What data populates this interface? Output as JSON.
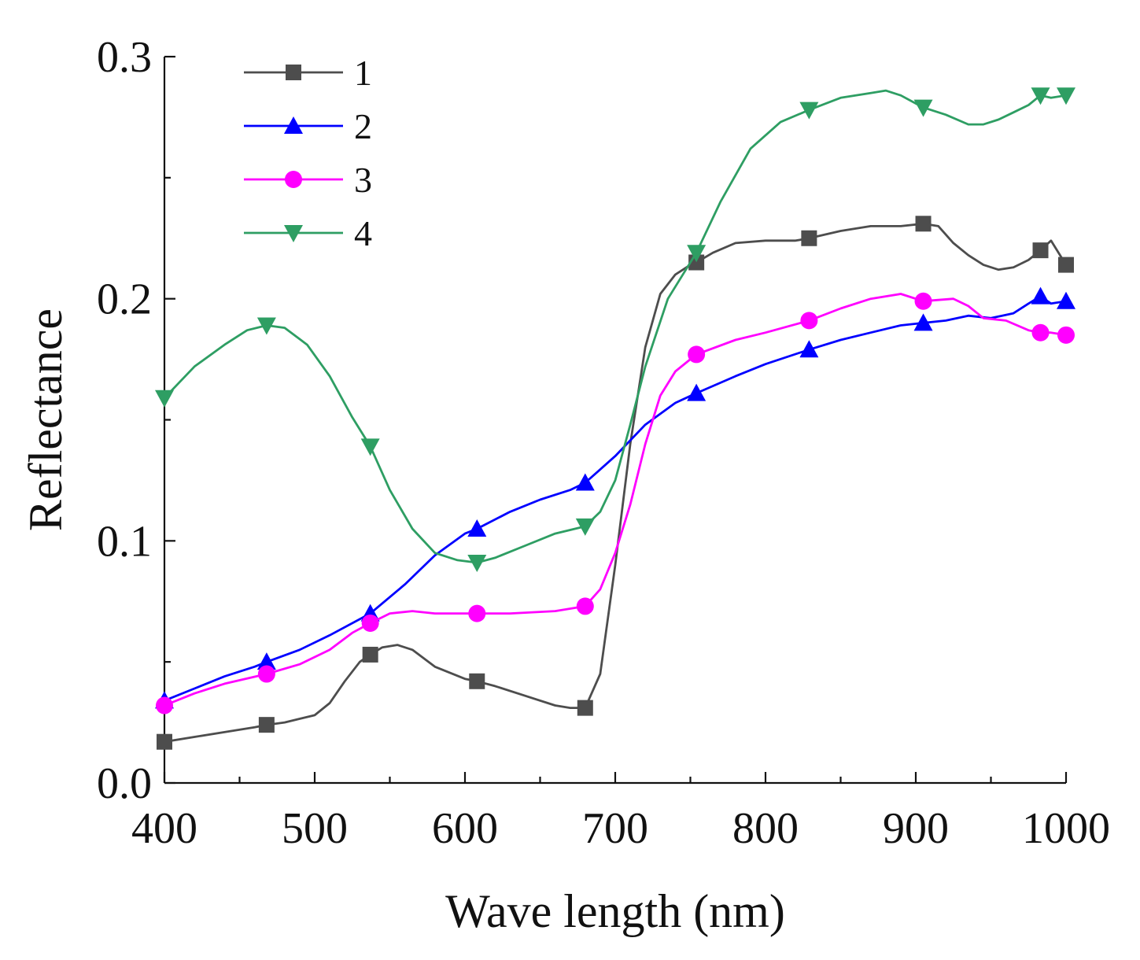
{
  "chart_data": {
    "type": "line",
    "title": "",
    "xlabel": "Wave length (nm)",
    "ylabel": "Reflectance",
    "xlim": [
      400,
      1000
    ],
    "ylim": [
      0.0,
      0.3
    ],
    "xticks": [
      400,
      500,
      600,
      700,
      800,
      900,
      1000
    ],
    "xtick_labels": [
      "400",
      "500",
      "600",
      "700",
      "800",
      "900",
      "1000"
    ],
    "yticks": [
      0.0,
      0.1,
      0.2,
      0.3
    ],
    "ytick_labels": [
      "0.0",
      "0.1",
      "0.2",
      "0.3"
    ],
    "grid": false,
    "legend_position": "top-left",
    "series": [
      {
        "name": "1",
        "color": "#4d4d4d",
        "marker": "square",
        "x": [
          400,
          420,
          440,
          460,
          468,
          480,
          500,
          510,
          520,
          530,
          537,
          545,
          555,
          565,
          580,
          600,
          608,
          620,
          640,
          660,
          670,
          680,
          690,
          700,
          710,
          720,
          730,
          740,
          750,
          754,
          765,
          780,
          800,
          820,
          829,
          850,
          870,
          880,
          890,
          905,
          915,
          925,
          935,
          945,
          955,
          965,
          975,
          983,
          990,
          1000
        ],
        "y": [
          0.017,
          0.019,
          0.021,
          0.023,
          0.024,
          0.025,
          0.028,
          0.033,
          0.042,
          0.05,
          0.053,
          0.056,
          0.057,
          0.055,
          0.048,
          0.043,
          0.042,
          0.04,
          0.036,
          0.032,
          0.031,
          0.031,
          0.045,
          0.09,
          0.14,
          0.18,
          0.202,
          0.21,
          0.214,
          0.215,
          0.219,
          0.223,
          0.224,
          0.224,
          0.225,
          0.228,
          0.23,
          0.23,
          0.23,
          0.231,
          0.23,
          0.223,
          0.218,
          0.214,
          0.212,
          0.213,
          0.216,
          0.22,
          0.224,
          0.214
        ],
        "marker_x": [
          400,
          468,
          537,
          608,
          680,
          754,
          829,
          905,
          983,
          1000
        ],
        "marker_y": [
          0.017,
          0.024,
          0.053,
          0.042,
          0.031,
          0.215,
          0.225,
          0.231,
          0.22,
          0.214
        ]
      },
      {
        "name": "2",
        "color": "#0000ff",
        "marker": "triangle-up",
        "x": [
          400,
          420,
          440,
          460,
          468,
          490,
          510,
          537,
          560,
          580,
          600,
          608,
          630,
          650,
          670,
          680,
          700,
          720,
          740,
          754,
          780,
          800,
          829,
          850,
          870,
          890,
          905,
          920,
          935,
          950,
          965,
          975,
          983,
          990,
          1000
        ],
        "y": [
          0.034,
          0.039,
          0.044,
          0.048,
          0.05,
          0.055,
          0.061,
          0.07,
          0.082,
          0.094,
          0.103,
          0.105,
          0.112,
          0.117,
          0.121,
          0.124,
          0.135,
          0.148,
          0.157,
          0.161,
          0.168,
          0.173,
          0.179,
          0.183,
          0.186,
          0.189,
          0.19,
          0.191,
          0.193,
          0.192,
          0.194,
          0.198,
          0.201,
          0.198,
          0.199
        ],
        "marker_x": [
          400,
          468,
          537,
          608,
          680,
          754,
          829,
          905,
          983,
          1000
        ],
        "marker_y": [
          0.034,
          0.05,
          0.07,
          0.105,
          0.124,
          0.161,
          0.179,
          0.19,
          0.201,
          0.199
        ]
      },
      {
        "name": "3",
        "color": "#ff00ff",
        "marker": "circle",
        "x": [
          400,
          420,
          440,
          468,
          490,
          510,
          525,
          537,
          550,
          565,
          580,
          600,
          608,
          630,
          660,
          680,
          690,
          700,
          710,
          720,
          730,
          740,
          754,
          780,
          800,
          829,
          850,
          870,
          890,
          905,
          925,
          935,
          945,
          960,
          975,
          983,
          990,
          1000
        ],
        "y": [
          0.032,
          0.037,
          0.041,
          0.045,
          0.049,
          0.055,
          0.062,
          0.066,
          0.07,
          0.071,
          0.07,
          0.07,
          0.07,
          0.07,
          0.071,
          0.073,
          0.08,
          0.095,
          0.115,
          0.14,
          0.16,
          0.17,
          0.177,
          0.183,
          0.186,
          0.191,
          0.196,
          0.2,
          0.202,
          0.199,
          0.2,
          0.197,
          0.192,
          0.191,
          0.187,
          0.186,
          0.186,
          0.185
        ],
        "marker_x": [
          400,
          468,
          537,
          608,
          680,
          754,
          829,
          905,
          983,
          1000
        ],
        "marker_y": [
          0.032,
          0.045,
          0.066,
          0.07,
          0.073,
          0.177,
          0.191,
          0.199,
          0.186,
          0.185
        ]
      },
      {
        "name": "4",
        "color": "#2e9e63",
        "marker": "triangle-down",
        "x": [
          400,
          420,
          440,
          455,
          468,
          480,
          495,
          510,
          525,
          537,
          550,
          565,
          580,
          595,
          608,
          620,
          640,
          660,
          680,
          690,
          700,
          710,
          720,
          735,
          754,
          770,
          790,
          810,
          829,
          850,
          870,
          880,
          890,
          905,
          920,
          935,
          945,
          955,
          965,
          975,
          983,
          990,
          1000
        ],
        "y": [
          0.159,
          0.172,
          0.181,
          0.187,
          0.189,
          0.188,
          0.181,
          0.168,
          0.151,
          0.139,
          0.121,
          0.105,
          0.095,
          0.092,
          0.091,
          0.093,
          0.098,
          0.103,
          0.106,
          0.112,
          0.125,
          0.148,
          0.172,
          0.2,
          0.219,
          0.24,
          0.262,
          0.273,
          0.278,
          0.283,
          0.285,
          0.286,
          0.284,
          0.279,
          0.276,
          0.272,
          0.272,
          0.274,
          0.277,
          0.28,
          0.284,
          0.283,
          0.284
        ],
        "marker_x": [
          400,
          468,
          537,
          608,
          680,
          754,
          829,
          905,
          983,
          1000
        ],
        "marker_y": [
          0.159,
          0.189,
          0.139,
          0.091,
          0.106,
          0.219,
          0.278,
          0.279,
          0.284,
          0.284
        ]
      }
    ]
  }
}
